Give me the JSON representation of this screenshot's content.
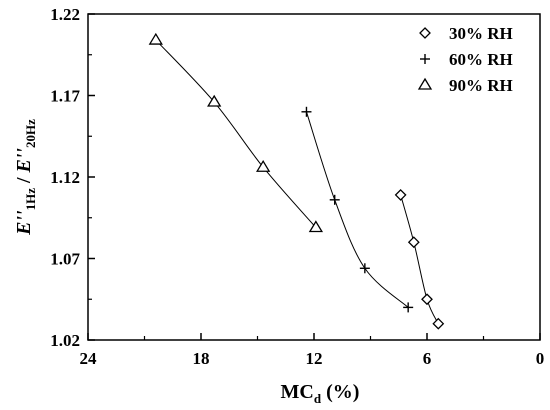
{
  "chart_data": {
    "type": "scatter",
    "title": "",
    "xlabel": {
      "main": "MC",
      "sub": "d",
      "tail": " (%)"
    },
    "ylabel": {
      "e1": "E''",
      "sub1": "1Hz",
      "slash": " / ",
      "e2": "E''",
      "sub2": "20Hz"
    },
    "xlim": [
      24,
      0
    ],
    "ylim": [
      1.02,
      1.22
    ],
    "x_reversed": true,
    "x_ticks": [
      24,
      18,
      12,
      6,
      0
    ],
    "x_tick_labels": [
      "24",
      "18",
      "12",
      "6",
      "0"
    ],
    "y_ticks": [
      1.02,
      1.07,
      1.12,
      1.17,
      1.22
    ],
    "y_tick_labels": [
      "1.02",
      "1.07",
      "1.12",
      "1.17",
      "1.22"
    ],
    "legend_position": "top-right",
    "series": [
      {
        "name": "30% RH",
        "marker": "diamond",
        "x": [
          7.4,
          6.7,
          6.0,
          5.4
        ],
        "y": [
          1.109,
          1.08,
          1.045,
          1.03
        ]
      },
      {
        "name": "60% RH",
        "marker": "plus",
        "x": [
          12.4,
          10.9,
          9.3,
          7.0
        ],
        "y": [
          1.16,
          1.106,
          1.064,
          1.04
        ]
      },
      {
        "name": "90% RH",
        "marker": "triangle",
        "x": [
          20.4,
          17.3,
          14.7,
          11.9
        ],
        "y": [
          1.204,
          1.166,
          1.126,
          1.089
        ]
      }
    ]
  }
}
